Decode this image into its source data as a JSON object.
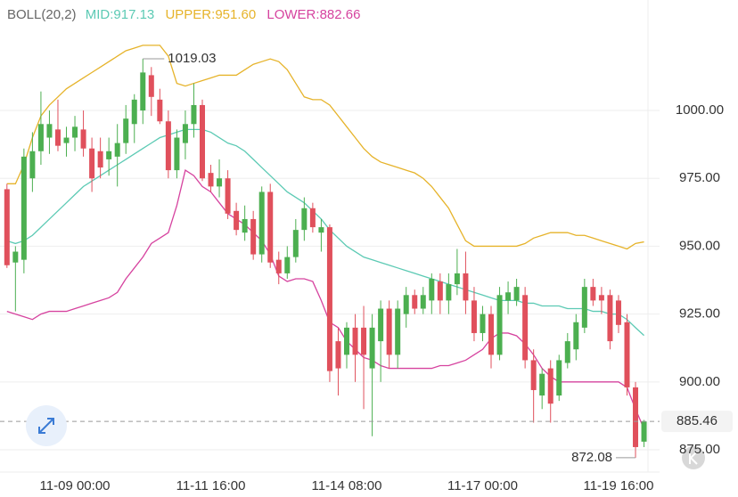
{
  "chart_data": {
    "type": "candlestick",
    "title": "BOLL(20,2)",
    "categories": [
      null,
      null,
      null,
      null,
      null,
      null,
      null,
      null,
      "11-09 00:00",
      null,
      null,
      null,
      null,
      null,
      null,
      null,
      null,
      null,
      null,
      null,
      null,
      null,
      null,
      null,
      "11-11 16:00",
      null,
      null,
      null,
      null,
      null,
      null,
      null,
      null,
      null,
      null,
      null,
      null,
      null,
      null,
      null,
      "11-14 08:00",
      null,
      null,
      null,
      null,
      null,
      null,
      null,
      null,
      null,
      null,
      null,
      null,
      null,
      null,
      null,
      "11-17 00:00",
      null,
      null,
      null,
      null,
      null,
      null,
      null,
      null,
      null,
      null,
      null,
      null,
      null,
      null,
      null,
      "11-19 16:00",
      null,
      null,
      null
    ],
    "open": [
      971,
      944,
      945,
      975,
      985,
      990,
      993,
      988,
      990,
      993,
      986,
      985,
      982,
      983,
      988,
      995,
      1000,
      1013,
      1004,
      996,
      978,
      988,
      995,
      1002,
      977,
      972,
      975,
      963,
      955,
      960,
      947,
      970,
      945,
      940,
      946,
      956,
      964,
      955,
      957,
      915,
      910,
      920,
      920,
      905,
      915,
      927,
      910,
      925,
      932,
      927,
      930,
      937,
      930,
      936,
      940,
      930,
      918,
      925,
      910,
      930,
      930,
      932,
      908,
      895,
      905,
      895,
      907,
      912,
      920,
      935,
      932,
      932,
      930,
      922,
      898,
      878
    ],
    "high": [
      973,
      950,
      986,
      992,
      1007,
      1000,
      1004,
      994,
      998,
      1000,
      990,
      990,
      990,
      995,
      1002,
      1006,
      1019.03,
      1016,
      1008,
      1000,
      993,
      1000,
      1010,
      1004,
      980,
      982,
      978,
      966,
      965,
      963,
      972,
      973,
      948,
      950,
      960,
      968,
      966,
      960,
      958,
      920,
      922,
      925,
      928,
      925,
      930,
      930,
      930,
      935,
      934,
      935,
      940,
      940,
      940,
      949,
      948,
      935,
      928,
      928,
      935,
      937,
      938,
      935,
      912,
      905,
      908,
      910,
      918,
      925,
      938,
      938,
      935,
      934,
      932,
      925,
      900,
      886
    ],
    "low": [
      942,
      926,
      940,
      970,
      980,
      984,
      985,
      983,
      985,
      983,
      970,
      975,
      976,
      972,
      984,
      988,
      995,
      998,
      995,
      975,
      975,
      982,
      990,
      974,
      970,
      968,
      960,
      954,
      952,
      945,
      944,
      942,
      936,
      938,
      944,
      952,
      955,
      948,
      900,
      895,
      905,
      900,
      890,
      880,
      900,
      905,
      905,
      920,
      925,
      925,
      925,
      925,
      925,
      932,
      925,
      915,
      915,
      905,
      908,
      925,
      928,
      905,
      885,
      890,
      885,
      893,
      905,
      908,
      918,
      928,
      925,
      912,
      918,
      895,
      872.08,
      876
    ],
    "close": [
      943,
      948,
      983,
      985,
      995,
      995,
      987,
      990,
      994,
      986,
      975,
      979,
      985,
      988,
      997,
      1004,
      1014,
      1005,
      996,
      978,
      990,
      995,
      1002,
      975,
      972,
      975,
      962,
      956,
      960,
      947,
      970,
      944,
      940,
      946,
      956,
      964,
      957,
      957,
      904,
      905,
      920,
      910,
      910,
      920,
      927,
      910,
      927,
      932,
      927,
      932,
      938,
      930,
      936,
      940,
      930,
      918,
      925,
      910,
      932,
      933,
      935,
      908,
      897,
      903,
      892,
      908,
      915,
      922,
      935,
      930,
      930,
      915,
      921,
      898,
      876,
      885.46
    ],
    "up_color": "#4caf50",
    "down_color": "#e0505c",
    "series": [
      {
        "name": "MID:",
        "legend_value": "917.13",
        "color": "#5ccab4",
        "values": [
          952,
          951,
          952,
          954,
          957,
          960,
          963,
          966,
          969,
          972,
          974,
          976,
          978,
          980,
          982,
          984,
          986,
          988,
          990,
          991,
          992,
          993,
          993,
          993,
          992,
          990,
          988,
          987,
          985,
          982,
          979,
          976,
          973,
          970,
          968,
          966,
          963,
          960,
          956,
          953,
          950,
          948,
          946,
          945,
          944,
          943,
          942,
          941,
          940,
          939,
          938,
          937,
          936,
          935,
          934,
          933,
          932,
          931,
          930,
          930,
          930,
          929,
          929,
          928,
          928,
          928,
          927,
          927,
          927,
          926,
          926,
          925,
          925,
          923,
          920,
          917.13
        ]
      },
      {
        "name": "UPPER:",
        "legend_value": "951.60",
        "color": "#e6b32a",
        "values": [
          973,
          973,
          980,
          990,
          998,
          1002,
          1005,
          1008,
          1010,
          1012,
          1014,
          1016,
          1018,
          1020,
          1022,
          1023,
          1024,
          1024,
          1024,
          1020,
          1010,
          1009,
          1010,
          1011,
          1012,
          1013,
          1013,
          1013,
          1015,
          1017,
          1018,
          1019,
          1018,
          1015,
          1010,
          1005,
          1004,
          1004,
          1002,
          998,
          994,
          990,
          986,
          983,
          981,
          980,
          979,
          978,
          977,
          975,
          972,
          968,
          964,
          958,
          952,
          950,
          950,
          950,
          950,
          950,
          950,
          951,
          953,
          954,
          955,
          955,
          955,
          954,
          954,
          953,
          952,
          951,
          950,
          949,
          951,
          951.6
        ]
      },
      {
        "name": "LOWER:",
        "legend_value": "882.66",
        "color": "#d6439f",
        "values": [
          926,
          925,
          924,
          923,
          925,
          926,
          926,
          926,
          927,
          928,
          929,
          930,
          931,
          933,
          938,
          942,
          946,
          951,
          953,
          955,
          965,
          978,
          976,
          972,
          970,
          966,
          962,
          960,
          958,
          955,
          952,
          947,
          939,
          937,
          938,
          938,
          937,
          930,
          922,
          920,
          915,
          912,
          909,
          908,
          906,
          905,
          905,
          905,
          905,
          905,
          905,
          906,
          906,
          907,
          908,
          910,
          912,
          916,
          918,
          918,
          917,
          914,
          910,
          905,
          902,
          900,
          900,
          900,
          900,
          900,
          900,
          900,
          900,
          898,
          890,
          882.66
        ]
      }
    ],
    "ylim": [
      866.8,
      1040.7
    ],
    "yticks": [
      {
        "value": 875,
        "label": "875.00"
      },
      {
        "value": 900,
        "label": "900.00"
      },
      {
        "value": 925,
        "label": "925.00"
      },
      {
        "value": 950,
        "label": "950.00"
      },
      {
        "value": 975,
        "label": "975.00"
      },
      {
        "value": 1000,
        "label": "1000.00"
      }
    ],
    "grid": true,
    "current_color": "#4caf50"
  }
}
